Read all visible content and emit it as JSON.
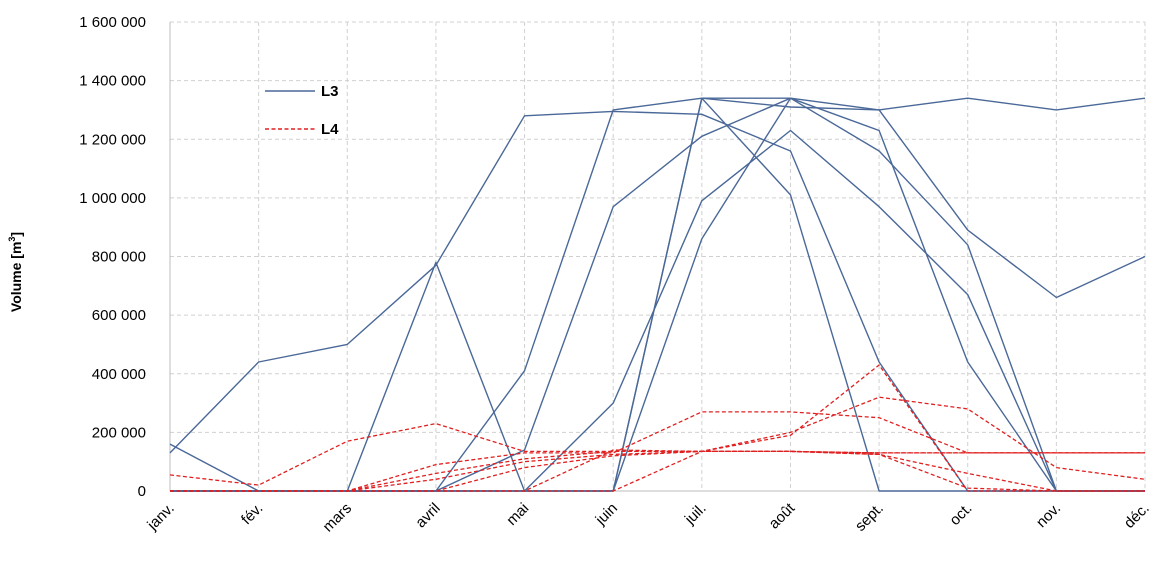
{
  "chart_data": {
    "type": "line",
    "title": "",
    "xlabel": "",
    "ylabel": {
      "text": "Volume [m",
      "superscript": "3",
      "suffix": "]"
    },
    "ylim": [
      0,
      1600000
    ],
    "yticks": [
      0,
      200000,
      400000,
      600000,
      800000,
      1000000,
      1200000,
      1400000,
      1600000
    ],
    "ytick_labels": [
      "0",
      "200 000",
      "400 000",
      "600 000",
      "800 000",
      "1 000 000",
      "1 200 000",
      "1 400 000",
      "1 600 000"
    ],
    "categories": [
      "janv.",
      "fév.",
      "mars",
      "avril",
      "mai",
      "juin",
      "juil.",
      "août",
      "sept.",
      "oct.",
      "nov.",
      "déc."
    ],
    "grid": true,
    "legend_position": "top-left",
    "legend": [
      {
        "label": "L3",
        "color": "#4a6898",
        "dash": "solid"
      },
      {
        "label": "L4",
        "color": "#e02020",
        "dash": "dashed"
      }
    ],
    "groups": [
      {
        "name": "L3",
        "color": "#4a6898",
        "dash": "solid",
        "series": [
          {
            "values": [
              130000,
              440000,
              500000,
              770000,
              1280000,
              1295000,
              1285000,
              1160000,
              440000,
              0,
              0,
              0
            ]
          },
          {
            "values": [
              160000,
              0,
              0,
              780000,
              0,
              0,
              1340000,
              1340000,
              1300000,
              1340000,
              1300000,
              1340000
            ]
          },
          {
            "values": [
              0,
              0,
              0,
              0,
              410000,
              1300000,
              1340000,
              1010000,
              0,
              0,
              0,
              0
            ]
          },
          {
            "values": [
              0,
              0,
              0,
              0,
              140000,
              970000,
              1210000,
              1340000,
              1230000,
              440000,
              0,
              0
            ]
          },
          {
            "values": [
              0,
              0,
              0,
              0,
              0,
              300000,
              990000,
              1230000,
              970000,
              670000,
              0,
              0
            ]
          },
          {
            "values": [
              0,
              0,
              0,
              0,
              0,
              0,
              860000,
              1340000,
              1160000,
              840000,
              0,
              0
            ]
          },
          {
            "values": [
              0,
              0,
              0,
              0,
              0,
              0,
              1340000,
              1310000,
              1300000,
              890000,
              660000,
              800000
            ]
          }
        ]
      },
      {
        "name": "L4",
        "color": "#e02020",
        "dash": "dashed",
        "series": [
          {
            "values": [
              55000,
              20000,
              170000,
              230000,
              135000,
              135000,
              135000,
              135000,
              130000,
              130000,
              130000,
              130000
            ]
          },
          {
            "values": [
              0,
              0,
              0,
              90000,
              130000,
              130000,
              270000,
              270000,
              250000,
              130000,
              130000,
              130000
            ]
          },
          {
            "values": [
              0,
              0,
              0,
              60000,
              110000,
              135000,
              135000,
              200000,
              320000,
              280000,
              80000,
              40000
            ]
          },
          {
            "values": [
              0,
              0,
              0,
              40000,
              100000,
              125000,
              135000,
              190000,
              430000,
              0,
              0,
              0
            ]
          },
          {
            "values": [
              0,
              0,
              0,
              0,
              80000,
              120000,
              135000,
              135000,
              125000,
              60000,
              0,
              0
            ]
          },
          {
            "values": [
              0,
              0,
              0,
              0,
              0,
              140000,
              135000,
              135000,
              125000,
              10000,
              0,
              0
            ]
          },
          {
            "values": [
              0,
              0,
              0,
              0,
              0,
              0,
              135000,
              135000,
              130000,
              130000,
              130000,
              130000
            ]
          }
        ]
      }
    ]
  }
}
